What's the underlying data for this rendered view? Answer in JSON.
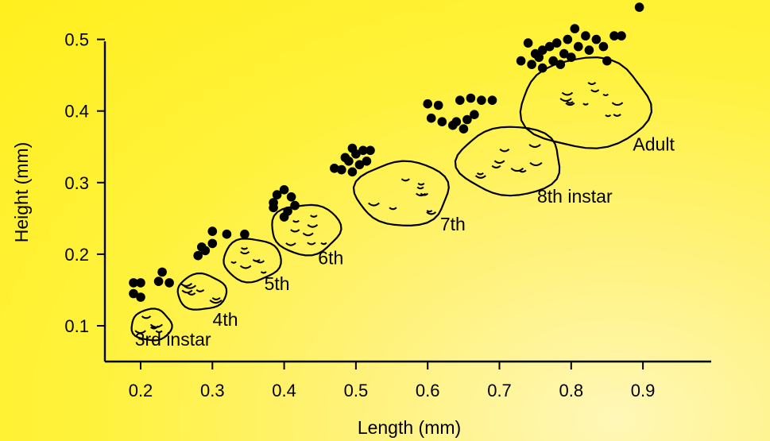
{
  "chart_data": {
    "type": "scatter",
    "title": "",
    "xlabel": "Length (mm)",
    "ylabel": "Height (mm)",
    "xlim": [
      0.15,
      1.0
    ],
    "ylim": [
      0.06,
      0.56
    ],
    "x_ticks": [
      "0.2",
      "0.3",
      "0.4",
      "0.5",
      "0.6",
      "0.7",
      "0.8",
      "0.9"
    ],
    "y_ticks": [
      "0.1",
      "0.2",
      "0.3",
      "0.4",
      "0.5"
    ],
    "points": [
      {
        "x": 0.19,
        "y": 0.16
      },
      {
        "x": 0.2,
        "y": 0.16
      },
      {
        "x": 0.19,
        "y": 0.145
      },
      {
        "x": 0.2,
        "y": 0.14
      },
      {
        "x": 0.23,
        "y": 0.175
      },
      {
        "x": 0.225,
        "y": 0.162
      },
      {
        "x": 0.24,
        "y": 0.16
      },
      {
        "x": 0.28,
        "y": 0.198
      },
      {
        "x": 0.29,
        "y": 0.205
      },
      {
        "x": 0.3,
        "y": 0.215
      },
      {
        "x": 0.285,
        "y": 0.21
      },
      {
        "x": 0.3,
        "y": 0.232
      },
      {
        "x": 0.32,
        "y": 0.228
      },
      {
        "x": 0.345,
        "y": 0.228
      },
      {
        "x": 0.385,
        "y": 0.272
      },
      {
        "x": 0.39,
        "y": 0.283
      },
      {
        "x": 0.4,
        "y": 0.29
      },
      {
        "x": 0.41,
        "y": 0.28
      },
      {
        "x": 0.385,
        "y": 0.265
      },
      {
        "x": 0.405,
        "y": 0.26
      },
      {
        "x": 0.415,
        "y": 0.268
      },
      {
        "x": 0.4,
        "y": 0.252
      },
      {
        "x": 0.47,
        "y": 0.32
      },
      {
        "x": 0.48,
        "y": 0.318
      },
      {
        "x": 0.49,
        "y": 0.33
      },
      {
        "x": 0.5,
        "y": 0.34
      },
      {
        "x": 0.51,
        "y": 0.345
      },
      {
        "x": 0.52,
        "y": 0.345
      },
      {
        "x": 0.495,
        "y": 0.348
      },
      {
        "x": 0.505,
        "y": 0.325
      },
      {
        "x": 0.485,
        "y": 0.335
      },
      {
        "x": 0.515,
        "y": 0.33
      },
      {
        "x": 0.495,
        "y": 0.315
      },
      {
        "x": 0.6,
        "y": 0.41
      },
      {
        "x": 0.615,
        "y": 0.408
      },
      {
        "x": 0.645,
        "y": 0.415
      },
      {
        "x": 0.66,
        "y": 0.418
      },
      {
        "x": 0.675,
        "y": 0.415
      },
      {
        "x": 0.69,
        "y": 0.415
      },
      {
        "x": 0.605,
        "y": 0.39
      },
      {
        "x": 0.62,
        "y": 0.385
      },
      {
        "x": 0.64,
        "y": 0.385
      },
      {
        "x": 0.655,
        "y": 0.388
      },
      {
        "x": 0.665,
        "y": 0.395
      },
      {
        "x": 0.65,
        "y": 0.375
      },
      {
        "x": 0.635,
        "y": 0.38
      },
      {
        "x": 0.73,
        "y": 0.47
      },
      {
        "x": 0.745,
        "y": 0.465
      },
      {
        "x": 0.755,
        "y": 0.475
      },
      {
        "x": 0.76,
        "y": 0.485
      },
      {
        "x": 0.77,
        "y": 0.49
      },
      {
        "x": 0.78,
        "y": 0.495
      },
      {
        "x": 0.79,
        "y": 0.48
      },
      {
        "x": 0.795,
        "y": 0.5
      },
      {
        "x": 0.805,
        "y": 0.515
      },
      {
        "x": 0.81,
        "y": 0.49
      },
      {
        "x": 0.82,
        "y": 0.505
      },
      {
        "x": 0.835,
        "y": 0.5
      },
      {
        "x": 0.845,
        "y": 0.49
      },
      {
        "x": 0.86,
        "y": 0.505
      },
      {
        "x": 0.87,
        "y": 0.505
      },
      {
        "x": 0.74,
        "y": 0.495
      },
      {
        "x": 0.76,
        "y": 0.46
      },
      {
        "x": 0.775,
        "y": 0.47
      },
      {
        "x": 0.8,
        "y": 0.475
      },
      {
        "x": 0.825,
        "y": 0.485
      },
      {
        "x": 0.85,
        "y": 0.47
      },
      {
        "x": 0.785,
        "y": 0.465
      },
      {
        "x": 0.75,
        "y": 0.48
      },
      {
        "x": 0.895,
        "y": 0.545
      }
    ],
    "outlines": [
      {
        "label": "3rd instar",
        "cx": 0.215,
        "cy": 0.101,
        "rx": 0.028,
        "ry": 0.022,
        "label_x": 0.245,
        "label_y": 0.072
      },
      {
        "label": "4th",
        "cx": 0.285,
        "cy": 0.147,
        "rx": 0.034,
        "ry": 0.025,
        "label_x": 0.318,
        "label_y": 0.1
      },
      {
        "label": "5th",
        "cx": 0.355,
        "cy": 0.192,
        "rx": 0.04,
        "ry": 0.03,
        "label_x": 0.39,
        "label_y": 0.15
      },
      {
        "label": "6th",
        "cx": 0.43,
        "cy": 0.235,
        "rx": 0.048,
        "ry": 0.035,
        "label_x": 0.465,
        "label_y": 0.186
      },
      {
        "label": "7th",
        "cx": 0.565,
        "cy": 0.285,
        "rx": 0.065,
        "ry": 0.045,
        "label_x": 0.635,
        "label_y": 0.233
      },
      {
        "label": "8th instar",
        "cx": 0.715,
        "cy": 0.33,
        "rx": 0.072,
        "ry": 0.048,
        "label_x": 0.805,
        "label_y": 0.272
      },
      {
        "label": "Adult",
        "cx": 0.82,
        "cy": 0.41,
        "rx": 0.09,
        "ry": 0.063,
        "label_x": 0.915,
        "label_y": 0.345
      }
    ]
  }
}
